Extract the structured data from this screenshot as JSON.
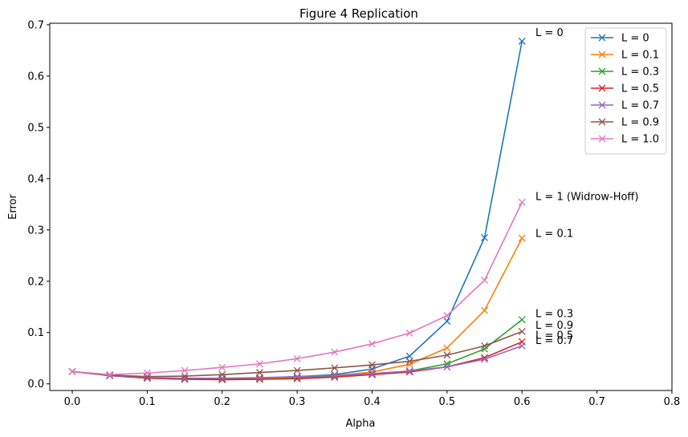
{
  "chart_data": {
    "type": "line",
    "title": "Figure 4 Replication",
    "xlabel": "Alpha",
    "ylabel": "Error",
    "xlim": [
      -0.03,
      0.8
    ],
    "ylim": [
      -0.013,
      0.703
    ],
    "xticks": [
      0.0,
      0.1,
      0.2,
      0.3,
      0.4,
      0.5,
      0.6,
      0.7,
      0.8
    ],
    "xtick_labels": [
      "0.0",
      "0.1",
      "0.2",
      "0.3",
      "0.4",
      "0.5",
      "0.6",
      "0.7",
      "0.8"
    ],
    "yticks": [
      0.0,
      0.1,
      0.2,
      0.3,
      0.4,
      0.5,
      0.6,
      0.7
    ],
    "ytick_labels": [
      "0.0",
      "0.1",
      "0.2",
      "0.3",
      "0.4",
      "0.5",
      "0.6",
      "0.7"
    ],
    "grid": false,
    "legend_position": "top-right",
    "marker": "x",
    "x": [
      0.0,
      0.05,
      0.1,
      0.15,
      0.2,
      0.25,
      0.3,
      0.35,
      0.4,
      0.45,
      0.5,
      0.55,
      0.6
    ],
    "series": [
      {
        "name": "L = 0",
        "color": "#1f77b4",
        "values": [
          0.024,
          0.016,
          0.012,
          0.01,
          0.01,
          0.011,
          0.014,
          0.018,
          0.029,
          0.054,
          0.122,
          0.285,
          0.668
        ]
      },
      {
        "name": "L = 0.1",
        "color": "#ff7f0e",
        "values": [
          0.024,
          0.016,
          0.012,
          0.01,
          0.01,
          0.011,
          0.013,
          0.016,
          0.023,
          0.038,
          0.07,
          0.143,
          0.284
        ]
      },
      {
        "name": "L = 0.3",
        "color": "#2ca02c",
        "values": [
          0.024,
          0.016,
          0.011,
          0.009,
          0.009,
          0.009,
          0.011,
          0.014,
          0.019,
          0.025,
          0.039,
          0.068,
          0.125
        ]
      },
      {
        "name": "L = 0.5",
        "color": "#d62728",
        "values": [
          0.024,
          0.016,
          0.011,
          0.009,
          0.008,
          0.009,
          0.01,
          0.013,
          0.018,
          0.023,
          0.033,
          0.051,
          0.082
        ]
      },
      {
        "name": "L = 0.7",
        "color": "#9467bd",
        "values": [
          0.024,
          0.016,
          0.012,
          0.011,
          0.011,
          0.012,
          0.014,
          0.016,
          0.02,
          0.025,
          0.033,
          0.048,
          0.074
        ]
      },
      {
        "name": "L = 0.9",
        "color": "#8c564b",
        "values": [
          0.024,
          0.017,
          0.014,
          0.015,
          0.018,
          0.022,
          0.026,
          0.031,
          0.037,
          0.044,
          0.056,
          0.074,
          0.102
        ]
      },
      {
        "name": "L = 1.0",
        "color": "#e377c2",
        "values": [
          0.024,
          0.018,
          0.021,
          0.026,
          0.032,
          0.039,
          0.049,
          0.062,
          0.078,
          0.099,
          0.133,
          0.202,
          0.354
        ]
      }
    ],
    "annotations": [
      {
        "text": "L = 0",
        "x": 0.618,
        "y": 0.678
      },
      {
        "text": "L = 1 (Widrow-Hoff)",
        "x": 0.618,
        "y": 0.358
      },
      {
        "text": "L = 0.1",
        "x": 0.618,
        "y": 0.286
      },
      {
        "text": "L = 0.3",
        "x": 0.618,
        "y": 0.13
      },
      {
        "text": "L = 0.9",
        "x": 0.618,
        "y": 0.107
      },
      {
        "text": "L = 0.5",
        "x": 0.618,
        "y": 0.088
      },
      {
        "text": "L = 0.7",
        "x": 0.618,
        "y": 0.078
      }
    ]
  }
}
